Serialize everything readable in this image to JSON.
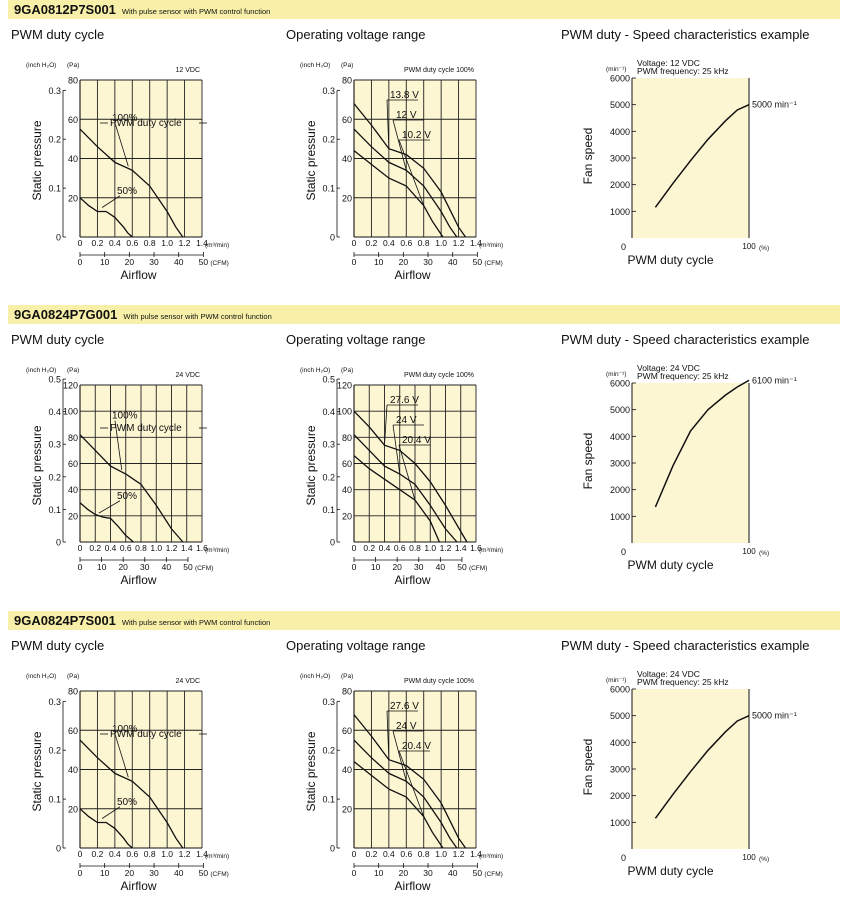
{
  "col_titles": [
    "PWM duty cycle",
    "Operating voltage range",
    "PWM duty - Speed characteristics example"
  ],
  "common": {
    "ylabel_pressure": "Static pressure",
    "ylabel_speed": "Fan speed",
    "xlabel_airflow": "Airflow",
    "xlabel_duty": "PWM duty cycle",
    "unit_inch": "(inch H₂O)",
    "unit_pa": "(Pa)",
    "unit_m3": "(m³/min)",
    "unit_cfm": "(CFM)",
    "unit_min": "(min⁻¹)",
    "unit_pct": "(%)",
    "pwm_freq": "PWM frequency: 25 kHz"
  },
  "sections": [
    {
      "model": "9GA0812P7S001",
      "desc": "With pulse sensor with PWM control function",
      "pressure_max_pa": 80,
      "inch_ticks": [
        "0.3",
        "0.2",
        "0.1",
        "0"
      ],
      "inch_values": [
        0.3,
        0.2,
        0.1,
        0
      ],
      "pa_ticks": [
        80,
        60,
        40,
        20,
        0
      ],
      "m3_ticks": [
        0,
        0.2,
        0.4,
        0.6,
        0.8,
        1.0,
        1.2,
        1.4
      ],
      "m3_max": 1.4,
      "cfm_ticks": [
        0,
        10,
        20,
        30,
        40,
        50
      ],
      "chart_data": [
        {
          "type": "line",
          "title": "PWM duty cycle",
          "voltage_label": "12 VDC",
          "legend": "PWM duty cycle",
          "xlabel": "Airflow",
          "ylabel": "Static pressure",
          "xlim": [
            0,
            1.4
          ],
          "ylim": [
            0,
            80
          ],
          "series": [
            {
              "name": "100%",
              "x": [
                0,
                0.2,
                0.4,
                0.6,
                0.8,
                1.0,
                1.1,
                1.18
              ],
              "y": [
                55,
                46,
                38,
                34,
                26,
                13,
                5,
                0
              ]
            },
            {
              "name": "50%",
              "x": [
                0,
                0.1,
                0.2,
                0.3,
                0.4,
                0.5,
                0.55,
                0.6
              ],
              "y": [
                20,
                16,
                13,
                13,
                10,
                5,
                2,
                0
              ]
            }
          ]
        },
        {
          "type": "line",
          "title": "Operating voltage range",
          "voltage_label": "PWM duty cycle 100%",
          "xlabel": "Airflow",
          "ylabel": "Static pressure",
          "xlim": [
            0,
            1.4
          ],
          "ylim": [
            0,
            80
          ],
          "series": [
            {
              "name": "13.8 V",
              "x": [
                0,
                0.2,
                0.4,
                0.6,
                0.8,
                1.0,
                1.2,
                1.28
              ],
              "y": [
                68,
                57,
                45,
                42,
                35,
                23,
                5,
                0
              ]
            },
            {
              "name": "12 V",
              "x": [
                0,
                0.2,
                0.4,
                0.6,
                0.8,
                1.0,
                1.1,
                1.18
              ],
              "y": [
                55,
                46,
                38,
                34,
                26,
                13,
                5,
                0
              ]
            },
            {
              "name": "10.2 V",
              "x": [
                0,
                0.2,
                0.4,
                0.6,
                0.8,
                0.9,
                1.02
              ],
              "y": [
                44,
                37,
                30,
                26,
                16,
                8,
                0
              ]
            }
          ]
        },
        {
          "type": "line",
          "title": "PWM duty - Speed characteristics example",
          "voltage_label": "Voltage: 12 VDC",
          "xlabel": "PWM duty cycle",
          "ylabel": "Fan speed",
          "xlim": [
            0,
            100
          ],
          "ylim": [
            0,
            6000
          ],
          "y_ticks": [
            1000,
            2000,
            3000,
            4000,
            5000,
            6000
          ],
          "x_tick_label": "100",
          "end_label": "5000 min⁻¹",
          "series": [
            {
              "name": "speed",
              "x": [
                20,
                35,
                50,
                65,
                80,
                90,
                100
              ],
              "y": [
                1150,
                2050,
                2900,
                3700,
                4400,
                4800,
                5000
              ]
            }
          ]
        }
      ]
    },
    {
      "model": "9GA0824P7G001",
      "desc": "With pulse sensor with PWM control function",
      "pressure_max_pa": 120,
      "inch_ticks": [
        "0.5",
        "0.4",
        "0.3",
        "0.2",
        "0.1",
        "0"
      ],
      "inch_values": [
        0.5,
        0.4,
        0.3,
        0.2,
        0.1,
        0
      ],
      "pa_ticks": [
        120,
        100,
        80,
        60,
        40,
        20,
        0
      ],
      "m3_ticks": [
        0,
        0.2,
        0.4,
        0.6,
        0.8,
        1.0,
        1.2,
        1.4,
        1.6
      ],
      "m3_max": 1.6,
      "cfm_ticks": [
        0,
        10,
        20,
        30,
        40,
        50
      ],
      "chart_data": [
        {
          "type": "line",
          "title": "PWM duty cycle",
          "voltage_label": "24 VDC",
          "legend": "PWM duty cycle",
          "xlabel": "Airflow",
          "ylabel": "Static pressure",
          "xlim": [
            0,
            1.6
          ],
          "ylim": [
            0,
            120
          ],
          "series": [
            {
              "name": "100%",
              "x": [
                0,
                0.2,
                0.4,
                0.6,
                0.8,
                1.0,
                1.2,
                1.35
              ],
              "y": [
                82,
                70,
                58,
                52,
                44,
                28,
                10,
                0
              ]
            },
            {
              "name": "50%",
              "x": [
                0,
                0.1,
                0.2,
                0.3,
                0.4,
                0.5,
                0.6,
                0.7
              ],
              "y": [
                30,
                25,
                21,
                19,
                18,
                12,
                5,
                0
              ]
            }
          ]
        },
        {
          "type": "line",
          "title": "Operating voltage range",
          "voltage_label": "PWM duty cycle 100%",
          "xlabel": "Airflow",
          "ylabel": "Static pressure",
          "xlim": [
            0,
            1.6
          ],
          "ylim": [
            0,
            120
          ],
          "series": [
            {
              "name": "27.6 V",
              "x": [
                0,
                0.2,
                0.4,
                0.6,
                0.8,
                1.0,
                1.2,
                1.4,
                1.48
              ],
              "y": [
                100,
                88,
                74,
                70,
                60,
                46,
                28,
                8,
                0
              ]
            },
            {
              "name": "24 V",
              "x": [
                0,
                0.2,
                0.4,
                0.6,
                0.8,
                1.0,
                1.2,
                1.35
              ],
              "y": [
                82,
                70,
                58,
                52,
                44,
                28,
                10,
                0
              ]
            },
            {
              "name": "20.4 V",
              "x": [
                0,
                0.2,
                0.4,
                0.6,
                0.8,
                1.0,
                1.12
              ],
              "y": [
                66,
                56,
                48,
                40,
                32,
                16,
                0
              ]
            }
          ]
        },
        {
          "type": "line",
          "title": "PWM duty - Speed characteristics example",
          "voltage_label": "Voltage: 24 VDC",
          "xlabel": "PWM duty cycle",
          "ylabel": "Fan speed",
          "xlim": [
            0,
            100
          ],
          "ylim": [
            0,
            6000
          ],
          "y_ticks": [
            1000,
            2000,
            3000,
            4000,
            5000,
            6000
          ],
          "x_tick_label": "100",
          "end_label": "6100 min⁻¹",
          "series": [
            {
              "name": "speed",
              "x": [
                20,
                35,
                50,
                65,
                80,
                90,
                100
              ],
              "y": [
                1350,
                2900,
                4200,
                5000,
                5550,
                5850,
                6100
              ]
            }
          ]
        }
      ]
    },
    {
      "model": "9GA0824P7S001",
      "desc": "With pulse sensor with PWM control function",
      "pressure_max_pa": 80,
      "inch_ticks": [
        "0.3",
        "0.2",
        "0.1",
        "0"
      ],
      "inch_values": [
        0.3,
        0.2,
        0.1,
        0
      ],
      "pa_ticks": [
        80,
        60,
        40,
        20,
        0
      ],
      "m3_ticks": [
        0,
        0.2,
        0.4,
        0.6,
        0.8,
        1.0,
        1.2,
        1.4
      ],
      "m3_max": 1.4,
      "cfm_ticks": [
        0,
        10,
        20,
        30,
        40,
        50
      ],
      "chart_data": [
        {
          "type": "line",
          "title": "PWM duty cycle",
          "voltage_label": "24 VDC",
          "legend": "PWM duty cycle",
          "xlabel": "Airflow",
          "ylabel": "Static pressure",
          "xlim": [
            0,
            1.4
          ],
          "ylim": [
            0,
            80
          ],
          "series": [
            {
              "name": "100%",
              "x": [
                0,
                0.2,
                0.4,
                0.6,
                0.8,
                1.0,
                1.1,
                1.18
              ],
              "y": [
                55,
                46,
                38,
                34,
                26,
                13,
                5,
                0
              ]
            },
            {
              "name": "50%",
              "x": [
                0,
                0.1,
                0.2,
                0.3,
                0.4,
                0.5,
                0.55,
                0.6
              ],
              "y": [
                20,
                16,
                13,
                13,
                10,
                5,
                2,
                0
              ]
            }
          ]
        },
        {
          "type": "line",
          "title": "Operating voltage range",
          "voltage_label": "PWM duty cycle 100%",
          "xlabel": "Airflow",
          "ylabel": "Static pressure",
          "xlim": [
            0,
            1.4
          ],
          "ylim": [
            0,
            80
          ],
          "series": [
            {
              "name": "27.6 V",
              "x": [
                0,
                0.2,
                0.4,
                0.6,
                0.8,
                1.0,
                1.2,
                1.28
              ],
              "y": [
                68,
                57,
                45,
                42,
                35,
                23,
                5,
                0
              ]
            },
            {
              "name": "24 V",
              "x": [
                0,
                0.2,
                0.4,
                0.6,
                0.8,
                1.0,
                1.1,
                1.18
              ],
              "y": [
                55,
                46,
                38,
                34,
                26,
                13,
                5,
                0
              ]
            },
            {
              "name": "20.4 V",
              "x": [
                0,
                0.2,
                0.4,
                0.6,
                0.8,
                0.9,
                1.02
              ],
              "y": [
                44,
                37,
                30,
                26,
                16,
                8,
                0
              ]
            }
          ]
        },
        {
          "type": "line",
          "title": "PWM duty - Speed characteristics example",
          "voltage_label": "Voltage: 24 VDC",
          "xlabel": "PWM duty cycle",
          "ylabel": "Fan speed",
          "xlim": [
            0,
            100
          ],
          "ylim": [
            0,
            6000
          ],
          "y_ticks": [
            1000,
            2000,
            3000,
            4000,
            5000,
            6000
          ],
          "x_tick_label": "100",
          "end_label": "5000 min⁻¹",
          "series": [
            {
              "name": "speed",
              "x": [
                20,
                35,
                50,
                65,
                80,
                90,
                100
              ],
              "y": [
                1150,
                2050,
                2900,
                3700,
                4400,
                4800,
                5000
              ]
            }
          ]
        }
      ]
    }
  ]
}
